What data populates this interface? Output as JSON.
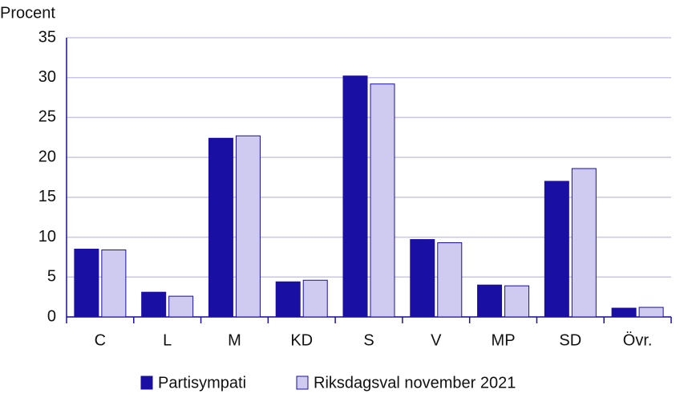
{
  "chart_data": {
    "type": "bar",
    "y_label": "Procent",
    "categories": [
      "C",
      "L",
      "M",
      "KD",
      "S",
      "V",
      "MP",
      "SD",
      "Övr."
    ],
    "series": [
      {
        "name": "Partisympati",
        "color": "#1a0fa3",
        "values": [
          8.5,
          3.1,
          22.4,
          4.4,
          30.2,
          9.7,
          4.0,
          17.0,
          1.1
        ]
      },
      {
        "name": "Riksdagsval november 2021",
        "color": "#cfcbf0",
        "values": [
          8.4,
          2.6,
          22.7,
          4.6,
          29.2,
          9.3,
          3.9,
          18.6,
          1.2
        ]
      }
    ],
    "ylim": [
      0,
      35
    ],
    "yticks": [
      0,
      5,
      10,
      15,
      20,
      25,
      30,
      35
    ],
    "grid": true,
    "legend": "bottom"
  }
}
